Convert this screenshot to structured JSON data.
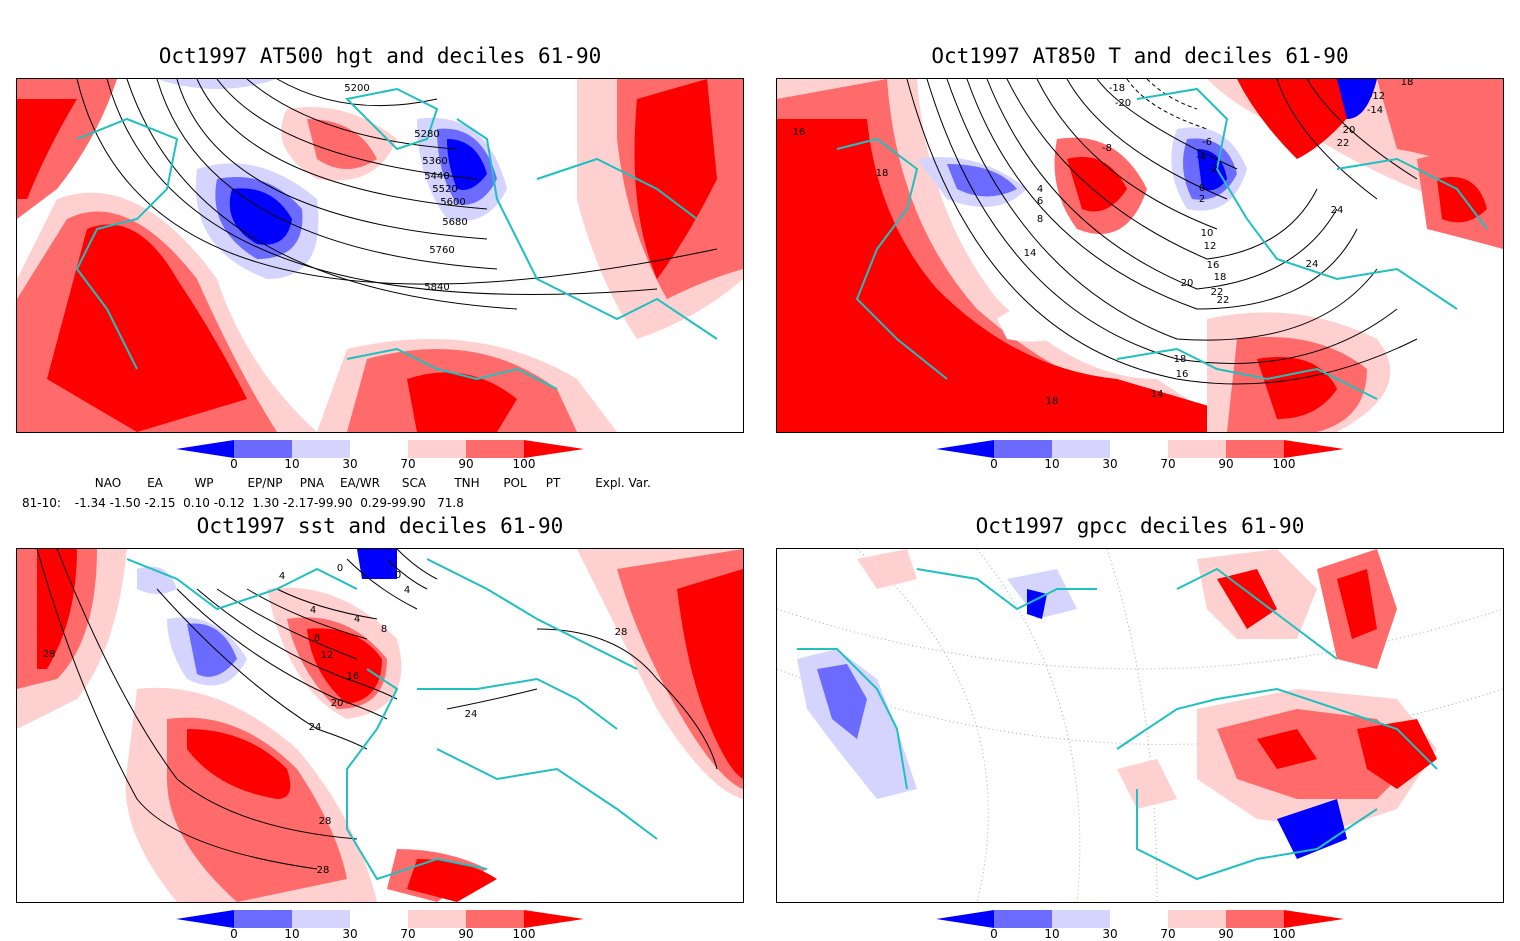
{
  "panels": {
    "tl": {
      "title": "Oct1997 AT500 hgt and deciles 61-90",
      "contour_labels": [
        "5200",
        "5280",
        "5360",
        "5440",
        "5520",
        "5600",
        "5680",
        "5760",
        "5840"
      ]
    },
    "tr": {
      "title": "Oct1997 AT850 T and deciles 61-90",
      "contour_labels": [
        "-18",
        "-20",
        "-12",
        "-14",
        "18",
        "20",
        "22",
        "16",
        "18",
        "-8",
        "-6",
        "-4",
        "-2",
        "0",
        "2",
        "4",
        "6",
        "8",
        "10",
        "12",
        "14",
        "16",
        "18",
        "22",
        "24",
        "24",
        "22",
        "20",
        "18",
        "16",
        "14",
        "18"
      ]
    },
    "bl": {
      "title": "Oct1997 sst and deciles 61-90",
      "contour_labels": [
        "0",
        "4",
        "4",
        "0",
        "4",
        "4",
        "8",
        "8",
        "12",
        "16",
        "20",
        "24",
        "24",
        "28",
        "28",
        "28",
        "28"
      ]
    },
    "br": {
      "title": "Oct1997 gpcc deciles 61-90"
    }
  },
  "colorbar": {
    "labels": [
      "0",
      "10",
      "30",
      "70",
      "90",
      "100"
    ],
    "colors": [
      "#0000ff",
      "#6b6bff",
      "#d4d4ff",
      "#ffffff",
      "#ffd0d0",
      "#ff6a6a",
      "#ff0000"
    ]
  },
  "indices": {
    "header": [
      "NAO",
      "EA",
      "WP",
      "EP/NP",
      "PNA",
      "EA/WR",
      "SCA",
      "TNH",
      "POL",
      "PT",
      "Expl. Var."
    ],
    "row_label": "81-10:",
    "values": "-1.34 -1.50 -2.15  0.10 -0.12  1.30 -2.17-99.90  0.29-99.90   71.8"
  },
  "colors": {
    "coast": "#20c0c0",
    "grid": "#888888"
  }
}
